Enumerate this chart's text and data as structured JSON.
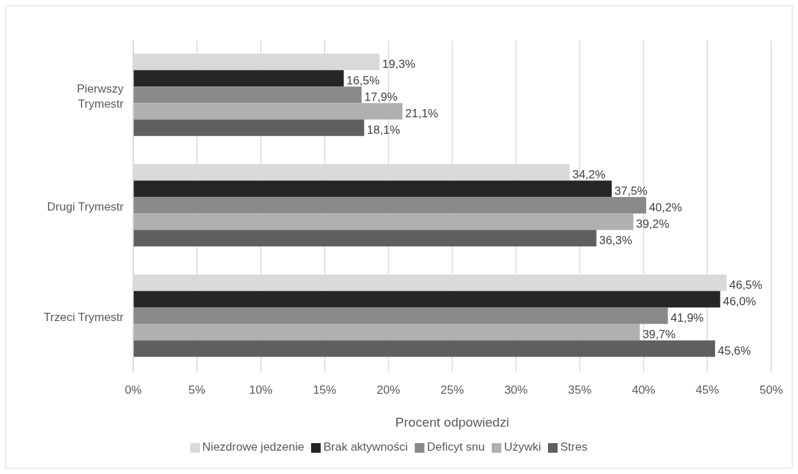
{
  "chart_data": {
    "type": "bar",
    "orientation": "horizontal",
    "xlabel": "Procent odpowiedzi",
    "categories": [
      "Pierwszy Trymestr",
      "Drugi Trymestr",
      "Trzeci Trymestr"
    ],
    "series": [
      {
        "name": "Niezdrowe jedzenie",
        "color": "#d9d9d9",
        "values": [
          19.3,
          34.2,
          46.5
        ],
        "value_labels": [
          "19,3%",
          "34,2%",
          "46,5%"
        ]
      },
      {
        "name": "Brak aktywności",
        "color": "#262626",
        "values": [
          16.5,
          37.5,
          46.0
        ],
        "value_labels": [
          "16,5%",
          "37,5%",
          "46,0%"
        ]
      },
      {
        "name": "Deficyt snu",
        "color": "#898989",
        "values": [
          17.9,
          40.2,
          41.9
        ],
        "value_labels": [
          "17,9%",
          "40,2%",
          "41,9%"
        ]
      },
      {
        "name": "Używki",
        "color": "#b0b0b0",
        "values": [
          21.1,
          39.2,
          39.7
        ],
        "value_labels": [
          "21,1%",
          "39,2%",
          "39,7%"
        ]
      },
      {
        "name": "Stres",
        "color": "#5f5f5f",
        "values": [
          18.1,
          36.3,
          45.6
        ],
        "value_labels": [
          "18,1%",
          "36,3%",
          "45,6%"
        ]
      }
    ],
    "xlim": [
      0,
      50
    ],
    "xticks": [
      {
        "value": 0,
        "label": "0%"
      },
      {
        "value": 5,
        "label": "5%"
      },
      {
        "value": 10,
        "label": "10%"
      },
      {
        "value": 15,
        "label": "15%"
      },
      {
        "value": 20,
        "label": "20%"
      },
      {
        "value": 25,
        "label": "25%"
      },
      {
        "value": 30,
        "label": "30%"
      },
      {
        "value": 35,
        "label": "35%"
      },
      {
        "value": 40,
        "label": "40%"
      },
      {
        "value": 45,
        "label": "45%"
      },
      {
        "value": 50,
        "label": "50%"
      }
    ],
    "grid": "x",
    "legend": "bottom"
  }
}
